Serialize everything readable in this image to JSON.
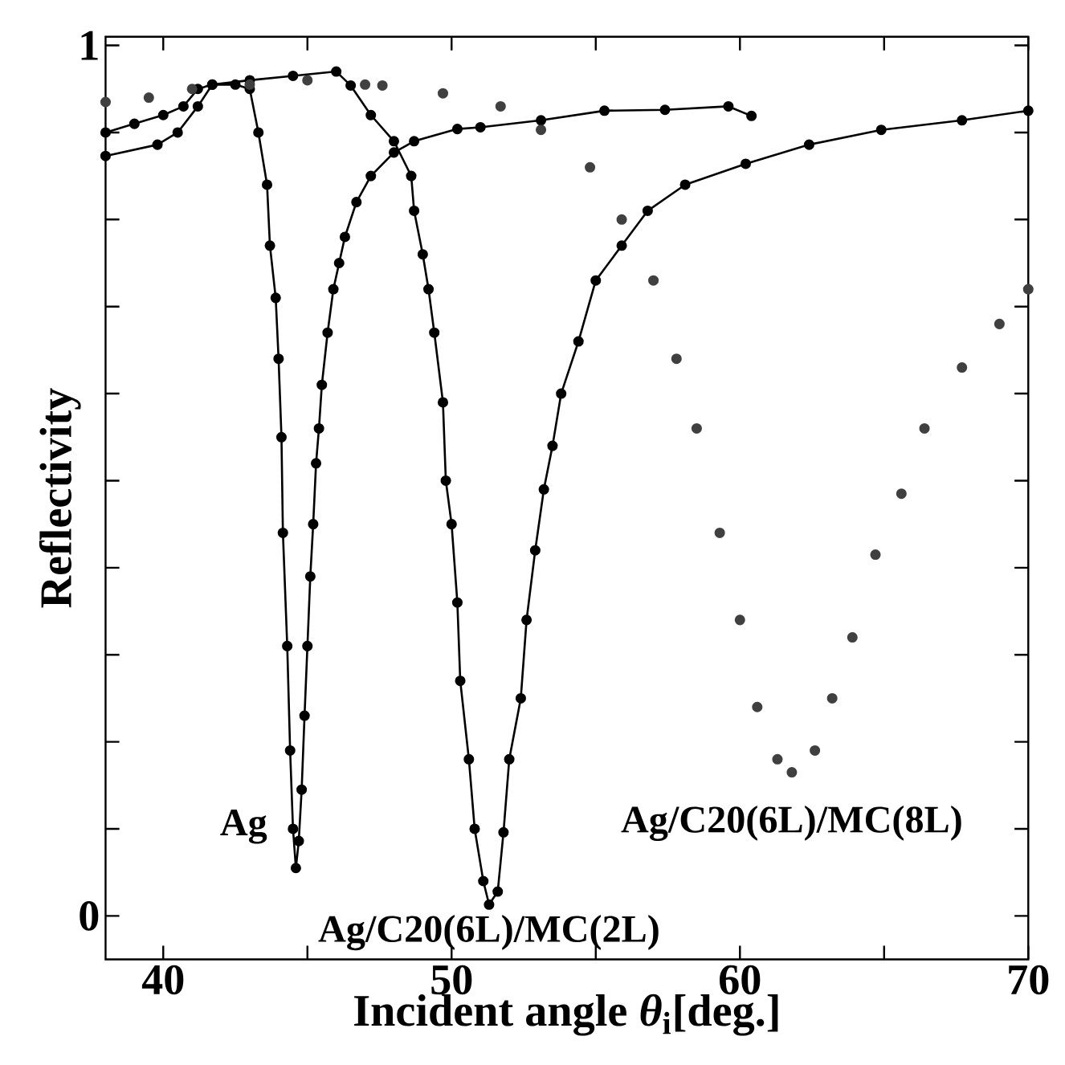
{
  "chart_data": {
    "type": "line",
    "xlabel": "Incident angle *θ*$_{i}$[deg.]",
    "ylabel": "Reflectivity",
    "xlim": [
      38,
      70
    ],
    "ylim": [
      -0.05,
      1.01
    ],
    "xticks": [
      40,
      {
        "value": 45,
        "label": null
      },
      50,
      {
        "value": 55,
        "label": null
      },
      60,
      {
        "value": 65,
        "label": null
      },
      70
    ],
    "yticks": [
      0,
      {
        "value": 0.1,
        "label": null
      },
      {
        "value": 0.2,
        "label": null
      },
      {
        "value": 0.3,
        "label": null
      },
      {
        "value": 0.4,
        "label": null
      },
      {
        "value": 0.5,
        "label": null
      },
      {
        "value": 0.6,
        "label": null
      },
      {
        "value": 0.7,
        "label": null
      },
      {
        "value": 0.8,
        "label": null
      },
      {
        "value": 0.9,
        "label": null
      },
      1
    ],
    "marker": "circle",
    "series": [
      {
        "color": "#000000",
        "line_style": "solid",
        "x": [
          38,
          39,
          40,
          40.7,
          41.2,
          41.7,
          42.5,
          43.0,
          43.3,
          43.6,
          43.7,
          43.9,
          44.0,
          44.1,
          44.15,
          44.3,
          44.4,
          44.5,
          44.6,
          44.7,
          44.8,
          44.9,
          45.0,
          45.1,
          45.2,
          45.3,
          45.4,
          45.5,
          45.7,
          45.9,
          46.1,
          46.3,
          46.7,
          47.2,
          48.0,
          48.7,
          50.2,
          51.0,
          53.1,
          55.3,
          57.4,
          59.6,
          60.4
        ],
        "values": [
          0.9,
          0.91,
          0.92,
          0.93,
          0.95,
          0.955,
          0.955,
          0.95,
          0.9,
          0.84,
          0.77,
          0.71,
          0.64,
          0.55,
          0.44,
          0.31,
          0.19,
          0.1,
          0.055,
          0.086,
          0.145,
          0.23,
          0.31,
          0.39,
          0.45,
          0.52,
          0.56,
          0.61,
          0.67,
          0.72,
          0.75,
          0.78,
          0.82,
          0.85,
          0.877,
          0.89,
          0.904,
          0.906,
          0.914,
          0.925,
          0.926,
          0.93,
          0.919
        ]
      },
      {
        "color": "#000000",
        "line_style": "solid",
        "x": [
          38,
          39.8,
          40.5,
          41.2,
          41.7,
          43,
          44.5,
          46,
          46.5,
          47.2,
          48.0,
          48.6,
          48.7,
          49.0,
          49.2,
          49.4,
          49.7,
          49.8,
          50.0,
          50.2,
          50.3,
          50.6,
          50.8,
          51.1,
          51.3,
          51.6,
          51.8,
          52.0,
          52.4,
          52.6,
          52.9,
          53.2,
          53.5,
          53.8,
          54.4,
          55.0,
          55.9,
          56.8,
          58.1,
          60.2,
          62.4,
          64.9,
          67.7,
          70
        ],
        "values": [
          0.873,
          0.886,
          0.9,
          0.93,
          0.955,
          0.96,
          0.965,
          0.97,
          0.954,
          0.92,
          0.89,
          0.85,
          0.81,
          0.76,
          0.72,
          0.67,
          0.59,
          0.5,
          0.45,
          0.36,
          0.27,
          0.18,
          0.1,
          0.04,
          0.013,
          0.028,
          0.096,
          0.18,
          0.25,
          0.34,
          0.42,
          0.49,
          0.54,
          0.6,
          0.66,
          0.73,
          0.77,
          0.81,
          0.84,
          0.864,
          0.886,
          0.903,
          0.914,
          0.925
        ]
      },
      {
        "type": "scatter",
        "color": "#404040",
        "x": [
          38,
          39.5,
          41,
          43,
          45,
          47,
          47.6,
          49.7,
          51.7,
          53.1,
          54.8,
          55.9,
          57.0,
          57.8,
          58.5,
          59.3,
          60.0,
          60.6,
          61.3,
          61.8,
          62.6,
          63.2,
          63.9,
          64.7,
          65.6,
          66.4,
          67.7,
          69.0,
          70.0
        ],
        "values": [
          0.935,
          0.94,
          0.95,
          0.955,
          0.96,
          0.955,
          0.954,
          0.945,
          0.93,
          0.903,
          0.86,
          0.8,
          0.73,
          0.64,
          0.56,
          0.44,
          0.34,
          0.24,
          0.18,
          0.165,
          0.19,
          0.25,
          0.32,
          0.415,
          0.485,
          0.56,
          0.63,
          0.68,
          0.72
        ]
      }
    ],
    "annotations": [
      {
        "text": "Ag",
        "x": 44.6,
        "y": 0.055
      },
      {
        "text": "Ag/C20(6L)/MC(2L)",
        "x": 51.3,
        "y": 0.013
      },
      {
        "text": "Ag/C20(6L)/MC(8L)",
        "x": 61.8,
        "y": 0.165
      }
    ]
  }
}
